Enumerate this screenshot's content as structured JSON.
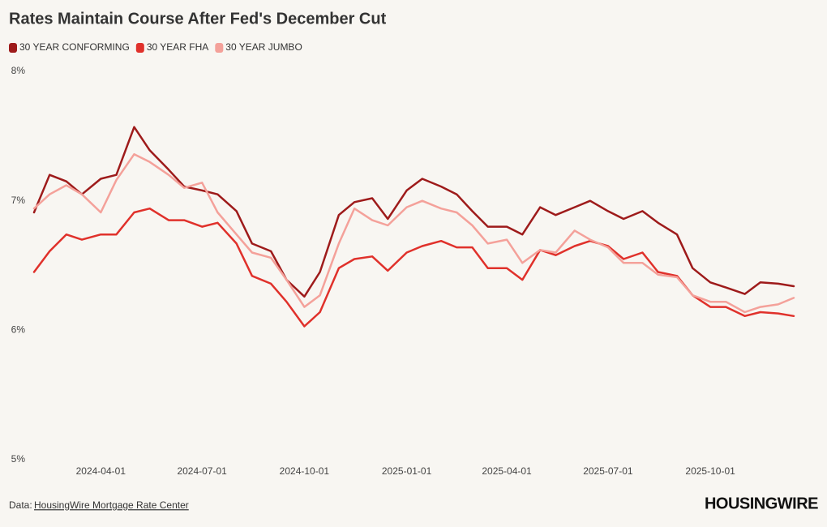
{
  "chart_data": {
    "type": "line",
    "title": "Rates Maintain Course After Fed's December Cut",
    "x": [
      "2024-02-01",
      "2024-02-15",
      "2024-03-01",
      "2024-03-15",
      "2024-04-01",
      "2024-04-15",
      "2024-05-01",
      "2024-05-15",
      "2024-06-01",
      "2024-06-15",
      "2024-07-01",
      "2024-07-15",
      "2024-08-01",
      "2024-08-15",
      "2024-09-01",
      "2024-09-15",
      "2024-10-01",
      "2024-10-15",
      "2024-11-01",
      "2024-11-15",
      "2024-12-01",
      "2024-12-15",
      "2025-01-01",
      "2025-01-15",
      "2025-02-01",
      "2025-02-15",
      "2025-03-01",
      "2025-03-15",
      "2025-04-01",
      "2025-04-15",
      "2025-05-01",
      "2025-05-15",
      "2025-06-01",
      "2025-06-15",
      "2025-07-01",
      "2025-07-15",
      "2025-08-01",
      "2025-08-15",
      "2025-09-01",
      "2025-09-15",
      "2025-10-01",
      "2025-10-15",
      "2025-11-01",
      "2025-11-15",
      "2025-12-01",
      "2025-12-15"
    ],
    "series": [
      {
        "name": "30 YEAR CONFORMING",
        "color": "#9e1b1b",
        "values": [
          6.91,
          7.2,
          7.15,
          7.05,
          7.17,
          7.2,
          7.57,
          7.39,
          7.24,
          7.11,
          7.08,
          7.05,
          6.92,
          6.67,
          6.61,
          6.39,
          6.26,
          6.45,
          6.89,
          6.99,
          7.02,
          6.86,
          7.08,
          7.17,
          7.11,
          7.05,
          6.92,
          6.8,
          6.8,
          6.74,
          6.95,
          6.89,
          6.95,
          7.0,
          6.92,
          6.86,
          6.92,
          6.83,
          6.74,
          6.48,
          6.37,
          6.33,
          6.28,
          6.37,
          6.36,
          6.34
        ]
      },
      {
        "name": "30 YEAR FHA",
        "color": "#e0312b",
        "values": [
          6.45,
          6.61,
          6.74,
          6.7,
          6.74,
          6.74,
          6.91,
          6.94,
          6.85,
          6.85,
          6.8,
          6.83,
          6.67,
          6.42,
          6.36,
          6.22,
          6.03,
          6.14,
          6.48,
          6.55,
          6.57,
          6.46,
          6.6,
          6.65,
          6.69,
          6.64,
          6.64,
          6.48,
          6.48,
          6.39,
          6.62,
          6.58,
          6.65,
          6.69,
          6.65,
          6.55,
          6.6,
          6.45,
          6.42,
          6.27,
          6.18,
          6.18,
          6.11,
          6.14,
          6.13,
          6.11
        ]
      },
      {
        "name": "30 YEAR JUMBO",
        "color": "#f4a19a",
        "values": [
          6.94,
          7.05,
          7.12,
          7.05,
          6.91,
          7.16,
          7.36,
          7.3,
          7.2,
          7.1,
          7.14,
          6.91,
          6.74,
          6.6,
          6.56,
          6.39,
          6.18,
          6.27,
          6.67,
          6.94,
          6.85,
          6.81,
          6.95,
          7.0,
          6.94,
          6.91,
          6.81,
          6.67,
          6.7,
          6.52,
          6.62,
          6.6,
          6.77,
          6.7,
          6.64,
          6.52,
          6.52,
          6.43,
          6.41,
          6.27,
          6.22,
          6.22,
          6.14,
          6.18,
          6.2,
          6.25
        ]
      }
    ],
    "xlim": [
      "2024-02-01",
      "2025-12-15"
    ],
    "xticks": [
      "2024-04-01",
      "2024-07-01",
      "2024-10-01",
      "2025-01-01",
      "2025-04-01",
      "2025-07-01",
      "2025-10-01"
    ],
    "ylim": [
      5,
      8
    ],
    "yticks": [
      {
        "value": 5,
        "label": "5%"
      },
      {
        "value": 6,
        "label": "6%"
      },
      {
        "value": 7,
        "label": "7%"
      },
      {
        "value": 8,
        "label": "8%"
      }
    ],
    "grid": false,
    "source_prefix": "Data:",
    "source_link": "HousingWire Mortgage Rate Center",
    "brand": "HOUSINGWIRE"
  }
}
